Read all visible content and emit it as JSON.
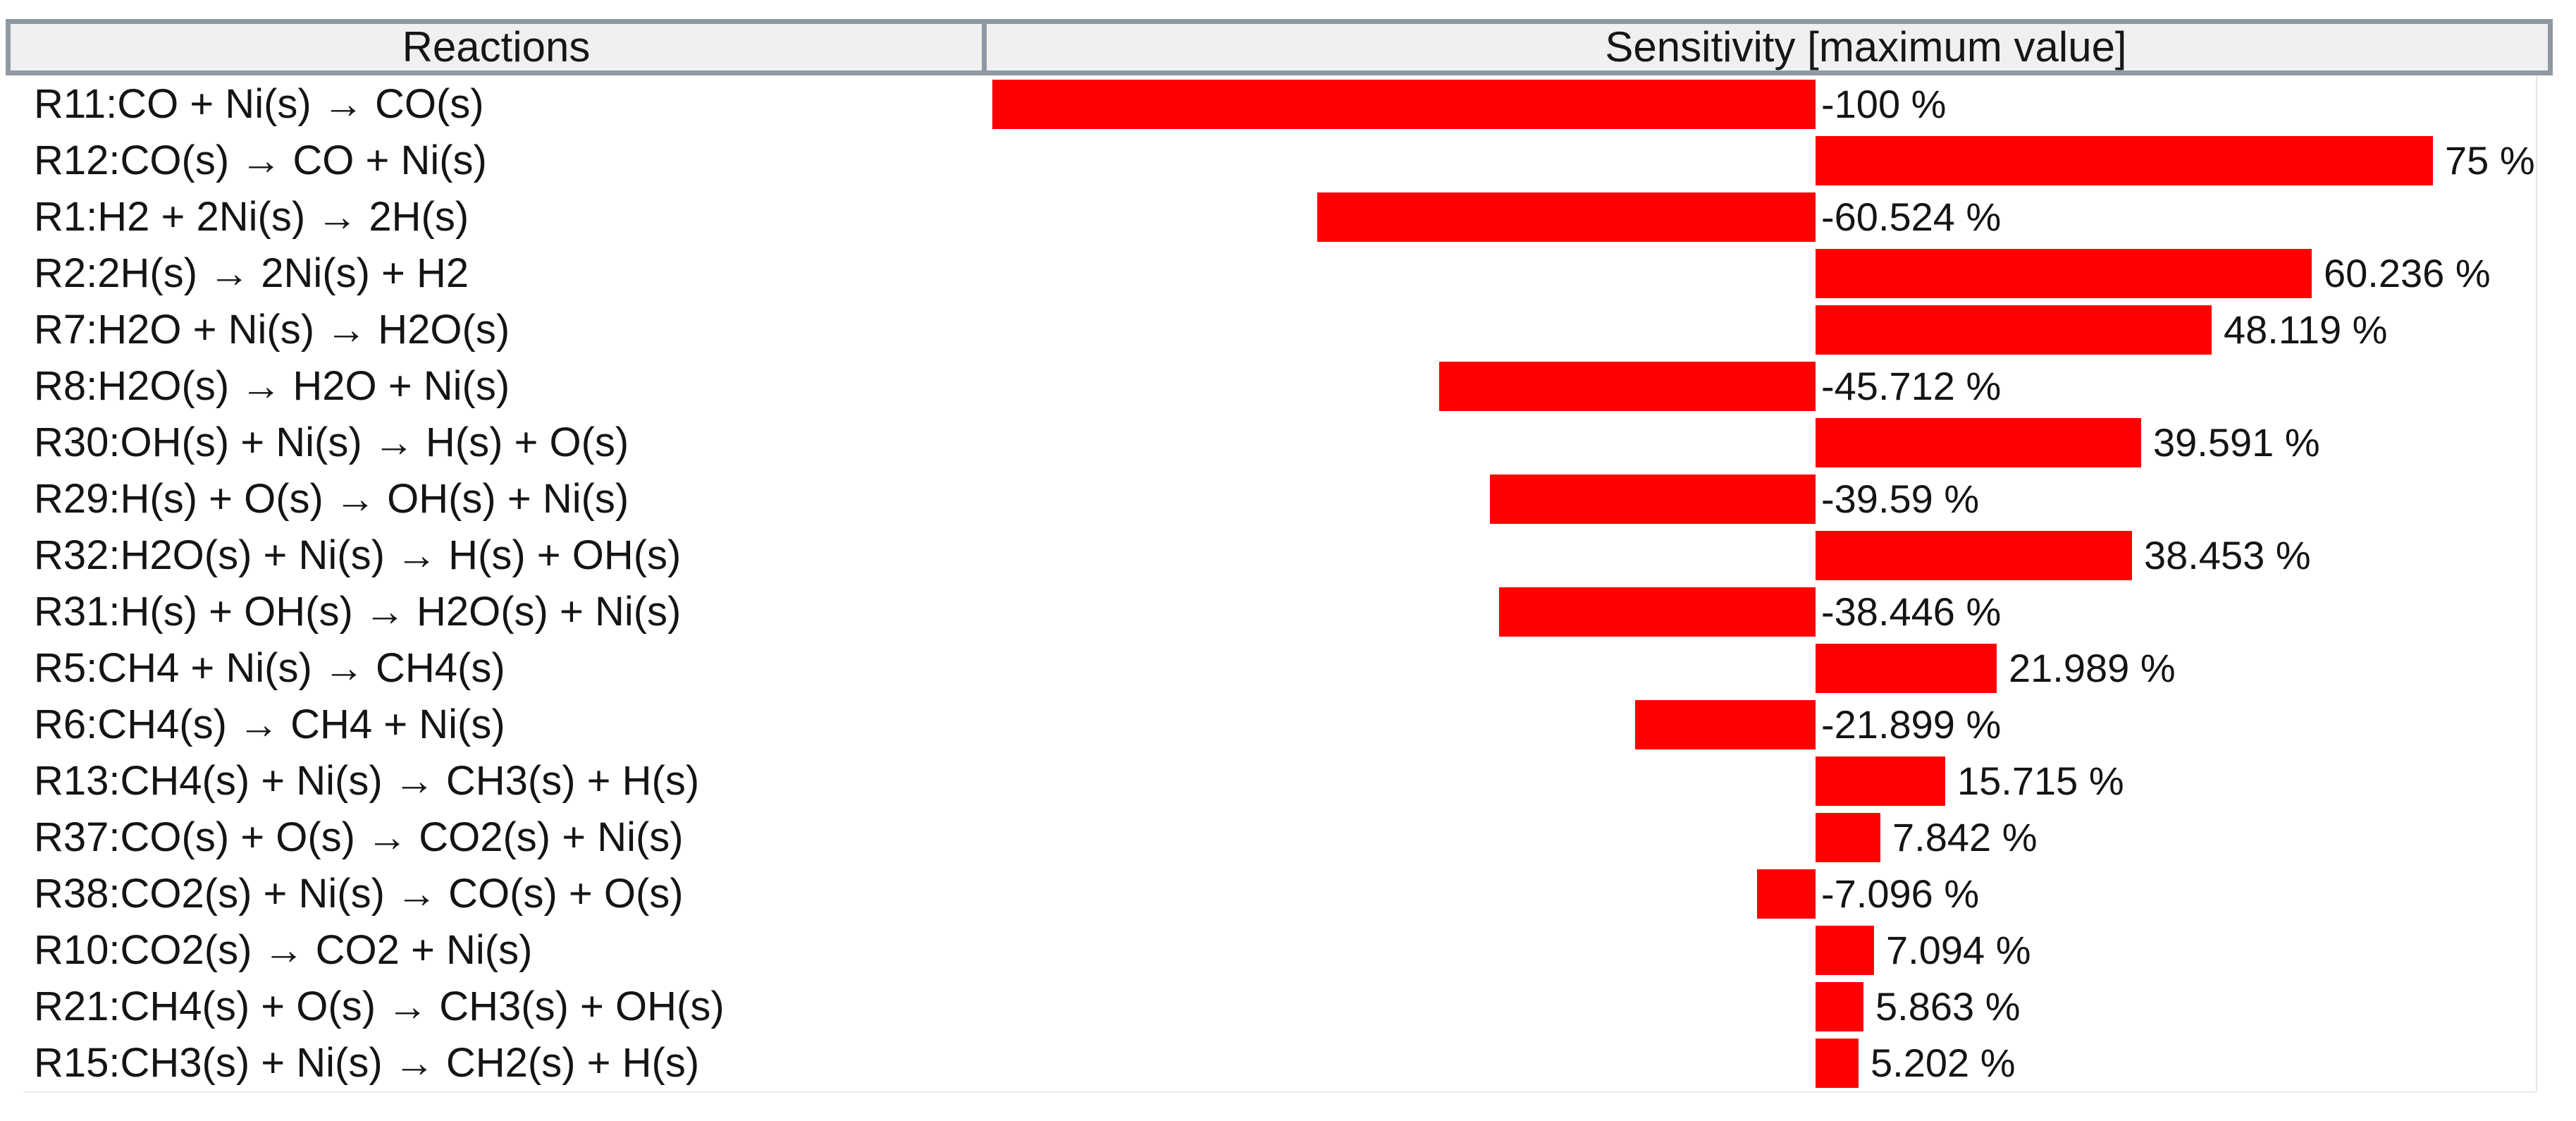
{
  "header": {
    "reactions_label": "Reactions",
    "sensitivity_label": "Sensitivity [maximum value]"
  },
  "colors": {
    "bar": "#ff0000",
    "header_fill": "#f0f0f0",
    "header_border": "#8e99a4",
    "text": "#141414"
  },
  "rows": [
    {
      "reaction": "R11:CO + Ni(s) → CO(s)",
      "value": -100,
      "label": "-100 %"
    },
    {
      "reaction": "R12:CO(s) → CO + Ni(s)",
      "value": 75,
      "label": "75 %"
    },
    {
      "reaction": "R1:H2 + 2Ni(s) → 2H(s)",
      "value": -60.524,
      "label": "-60.524 %"
    },
    {
      "reaction": "R2:2H(s) → 2Ni(s) + H2",
      "value": 60.236,
      "label": "60.236 %"
    },
    {
      "reaction": "R7:H2O + Ni(s) → H2O(s)",
      "value": 48.119,
      "label": "48.119 %"
    },
    {
      "reaction": "R8:H2O(s) → H2O + Ni(s)",
      "value": -45.712,
      "label": "-45.712 %"
    },
    {
      "reaction": "R30:OH(s) + Ni(s) → H(s) + O(s)",
      "value": 39.591,
      "label": "39.591 %"
    },
    {
      "reaction": "R29:H(s) + O(s) → OH(s) + Ni(s)",
      "value": -39.59,
      "label": "-39.59 %"
    },
    {
      "reaction": "R32:H2O(s) + Ni(s) → H(s) + OH(s)",
      "value": 38.453,
      "label": "38.453 %"
    },
    {
      "reaction": "R31:H(s) + OH(s) → H2O(s) + Ni(s)",
      "value": -38.446,
      "label": "-38.446 %"
    },
    {
      "reaction": "R5:CH4 + Ni(s) → CH4(s)",
      "value": 21.989,
      "label": "21.989 %"
    },
    {
      "reaction": "R6:CH4(s) → CH4 + Ni(s)",
      "value": -21.899,
      "label": "-21.899 %"
    },
    {
      "reaction": "R13:CH4(s) + Ni(s) → CH3(s) + H(s)",
      "value": 15.715,
      "label": "15.715 %"
    },
    {
      "reaction": "R37:CO(s) + O(s) → CO2(s) + Ni(s)",
      "value": 7.842,
      "label": "7.842 %"
    },
    {
      "reaction": "R38:CO2(s) + Ni(s) → CO(s) + O(s)",
      "value": -7.096,
      "label": "-7.096 %"
    },
    {
      "reaction": "R10:CO2(s) → CO2 + Ni(s)",
      "value": 7.094,
      "label": "7.094 %"
    },
    {
      "reaction": "R21:CH4(s) + O(s) → CH3(s) + OH(s)",
      "value": 5.863,
      "label": "5.863 %"
    },
    {
      "reaction": "R15:CH3(s) + Ni(s) → CH2(s) + H(s)",
      "value": 5.202,
      "label": "5.202 %"
    }
  ],
  "chart_data": {
    "type": "bar",
    "orientation": "horizontal",
    "title": "Sensitivity [maximum value]",
    "xlabel": "",
    "ylabel": "Reactions",
    "xlim": [
      -100,
      91
    ],
    "grid": false,
    "legend": "none",
    "bar_color": "#ff0000",
    "categories": [
      "R11:CO + Ni(s) → CO(s)",
      "R12:CO(s) → CO + Ni(s)",
      "R1:H2 + 2Ni(s) → 2H(s)",
      "R2:2H(s) → 2Ni(s) + H2",
      "R7:H2O + Ni(s) → H2O(s)",
      "R8:H2O(s) → H2O + Ni(s)",
      "R30:OH(s) + Ni(s) → H(s) + O(s)",
      "R29:H(s) + O(s) → OH(s) + Ni(s)",
      "R32:H2O(s) + Ni(s) → H(s) + OH(s)",
      "R31:H(s) + OH(s) → H2O(s) + Ni(s)",
      "R5:CH4 + Ni(s) → CH4(s)",
      "R6:CH4(s) → CH4 + Ni(s)",
      "R13:CH4(s) + Ni(s) → CH3(s) + H(s)",
      "R37:CO(s) + O(s) → CO2(s) + Ni(s)",
      "R38:CO2(s) + Ni(s) → CO(s) + O(s)",
      "R10:CO2(s) → CO2 + Ni(s)",
      "R21:CH4(s) + O(s) → CH3(s) + OH(s)",
      "R15:CH3(s) + Ni(s) → CH2(s) + H(s)"
    ],
    "values": [
      -100,
      75,
      -60.524,
      60.236,
      48.119,
      -45.712,
      39.591,
      -39.59,
      38.453,
      -38.446,
      21.989,
      -21.899,
      15.715,
      7.842,
      -7.096,
      7.094,
      5.863,
      5.202
    ],
    "value_labels": [
      "-100 %",
      "75 %",
      "-60.524 %",
      "60.236 %",
      "48.119 %",
      "-45.712 %",
      "39.591 %",
      "-39.59 %",
      "38.453 %",
      "-38.446 %",
      "21.989 %",
      "-21.899 %",
      "15.715 %",
      "7.842 %",
      "-7.096 %",
      "7.094 %",
      "5.863 %",
      "5.202 %"
    ]
  }
}
